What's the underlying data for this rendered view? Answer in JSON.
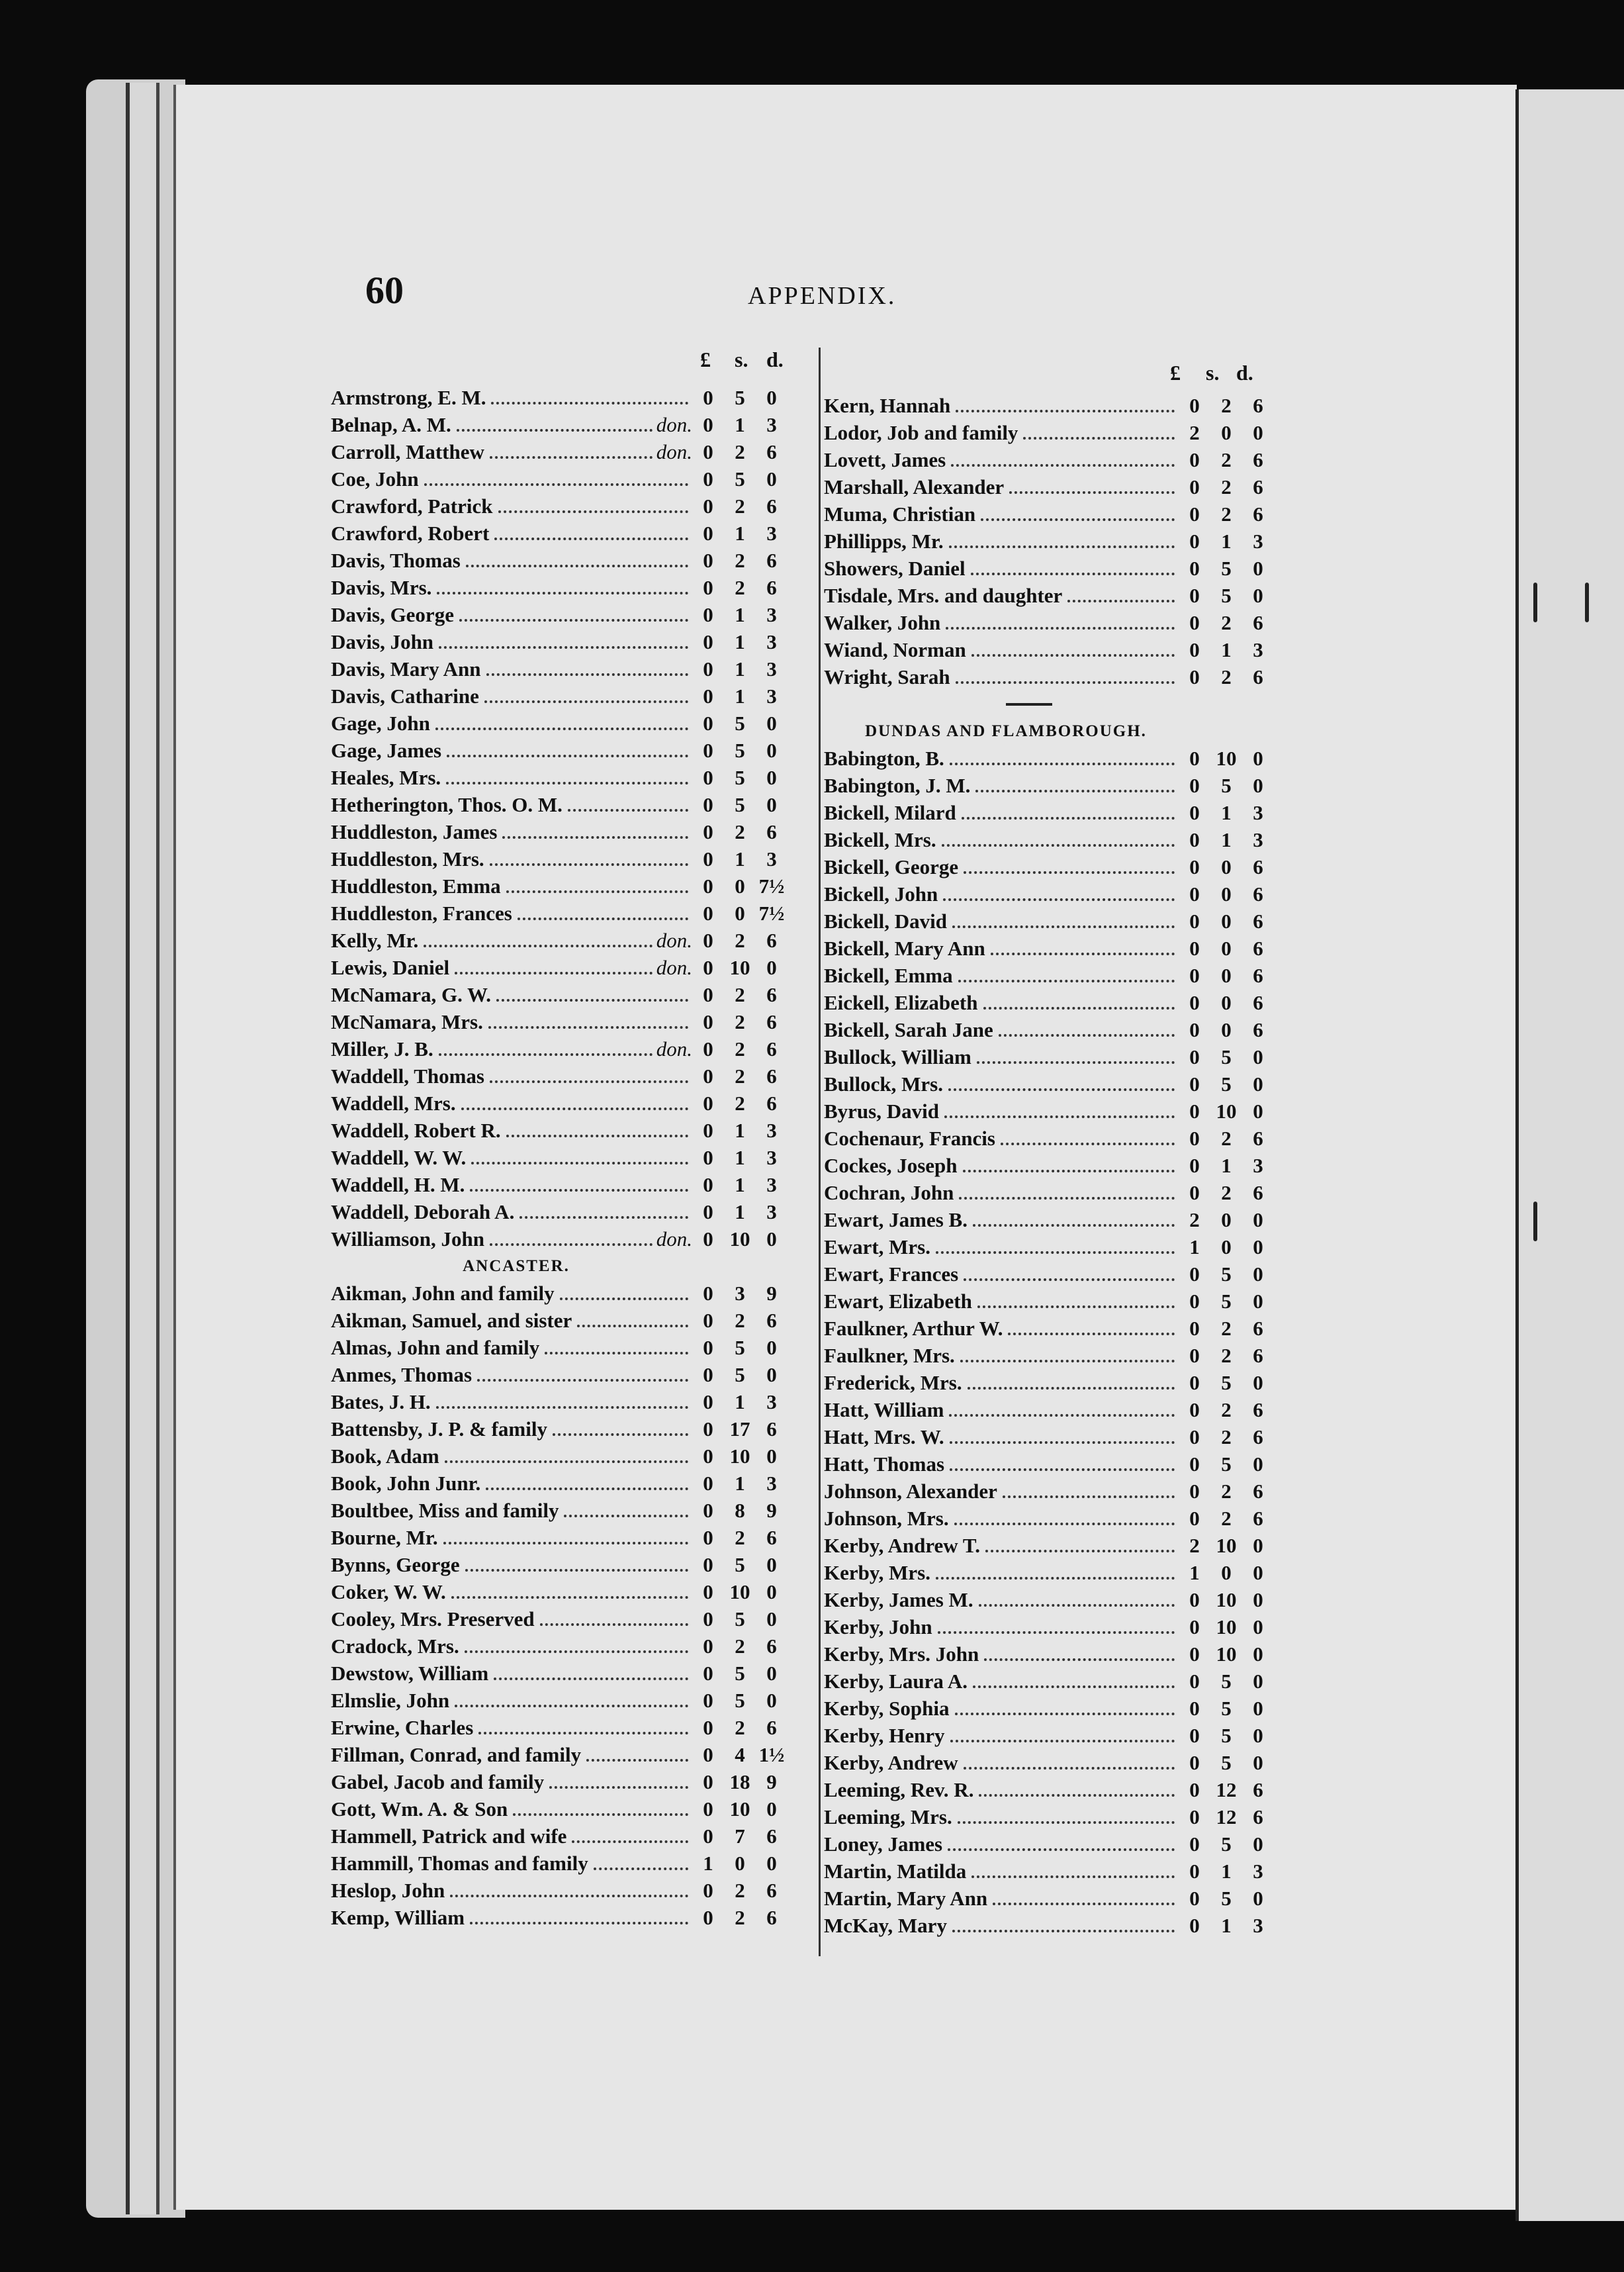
{
  "header": {
    "page_number": "60",
    "running_title": "APPENDIX."
  },
  "column_headings": {
    "pounds": "£",
    "shillings": "s.",
    "pence": "d."
  },
  "left_column": [
    {
      "name": "Armstrong, E. M.",
      "l": "0",
      "s": "5",
      "d": "0"
    },
    {
      "name": "Belnap, A. M.",
      "note": "don.",
      "l": "0",
      "s": "1",
      "d": "3"
    },
    {
      "name": "Carroll, Matthew",
      "note": "don.",
      "l": "0",
      "s": "2",
      "d": "6"
    },
    {
      "name": "Coe, John",
      "l": "0",
      "s": "5",
      "d": "0"
    },
    {
      "name": "Crawford, Patrick",
      "l": "0",
      "s": "2",
      "d": "6"
    },
    {
      "name": "Crawford, Robert",
      "l": "0",
      "s": "1",
      "d": "3"
    },
    {
      "name": "Davis, Thomas",
      "l": "0",
      "s": "2",
      "d": "6"
    },
    {
      "name": "Davis, Mrs.",
      "l": "0",
      "s": "2",
      "d": "6"
    },
    {
      "name": "Davis, George",
      "l": "0",
      "s": "1",
      "d": "3"
    },
    {
      "name": "Davis, John",
      "l": "0",
      "s": "1",
      "d": "3"
    },
    {
      "name": "Davis, Mary Ann",
      "l": "0",
      "s": "1",
      "d": "3"
    },
    {
      "name": "Davis, Catharine",
      "l": "0",
      "s": "1",
      "d": "3"
    },
    {
      "name": "Gage, John",
      "l": "0",
      "s": "5",
      "d": "0"
    },
    {
      "name": "Gage, James",
      "l": "0",
      "s": "5",
      "d": "0"
    },
    {
      "name": "Heales, Mrs.",
      "l": "0",
      "s": "5",
      "d": "0"
    },
    {
      "name": "Hetherington, Thos. O. M.",
      "l": "0",
      "s": "5",
      "d": "0"
    },
    {
      "name": "Huddleston, James",
      "l": "0",
      "s": "2",
      "d": "6"
    },
    {
      "name": "Huddleston, Mrs.",
      "l": "0",
      "s": "1",
      "d": "3"
    },
    {
      "name": "Huddleston, Emma",
      "l": "0",
      "s": "0",
      "d": "7½"
    },
    {
      "name": "Huddleston, Frances",
      "l": "0",
      "s": "0",
      "d": "7½"
    },
    {
      "name": "Kelly, Mr.",
      "note": "don.",
      "l": "0",
      "s": "2",
      "d": "6"
    },
    {
      "name": "Lewis, Daniel",
      "note": "don.",
      "l": "0",
      "s": "10",
      "d": "0"
    },
    {
      "name": "McNamara, G. W.",
      "l": "0",
      "s": "2",
      "d": "6"
    },
    {
      "name": "McNamara, Mrs.",
      "l": "0",
      "s": "2",
      "d": "6"
    },
    {
      "name": "Miller, J. B.",
      "note": "don.",
      "l": "0",
      "s": "2",
      "d": "6"
    },
    {
      "name": "Waddell, Thomas",
      "l": "0",
      "s": "2",
      "d": "6"
    },
    {
      "name": "Waddell, Mrs.",
      "l": "0",
      "s": "2",
      "d": "6"
    },
    {
      "name": "Waddell, Robert R.",
      "l": "0",
      "s": "1",
      "d": "3"
    },
    {
      "name": "Waddell, W. W.",
      "l": "0",
      "s": "1",
      "d": "3"
    },
    {
      "name": "Waddell, H. M.",
      "l": "0",
      "s": "1",
      "d": "3"
    },
    {
      "name": "Waddell, Deborah A.",
      "l": "0",
      "s": "1",
      "d": "3"
    },
    {
      "name": "Williamson, John",
      "note": "don.",
      "l": "0",
      "s": "10",
      "d": "0"
    },
    {
      "heading": "ANCASTER."
    },
    {
      "name": "Aikman, John and family",
      "l": "0",
      "s": "3",
      "d": "9"
    },
    {
      "name": "Aikman, Samuel, and sister",
      "l": "0",
      "s": "2",
      "d": "6"
    },
    {
      "name": "Almas, John and family",
      "l": "0",
      "s": "5",
      "d": "0"
    },
    {
      "name": "Anmes, Thomas",
      "l": "0",
      "s": "5",
      "d": "0"
    },
    {
      "name": "Bates, J. H.",
      "l": "0",
      "s": "1",
      "d": "3"
    },
    {
      "name": "Battensby, J. P. & family",
      "l": "0",
      "s": "17",
      "d": "6"
    },
    {
      "name": "Book, Adam",
      "l": "0",
      "s": "10",
      "d": "0"
    },
    {
      "name": "Book, John Junr.",
      "l": "0",
      "s": "1",
      "d": "3"
    },
    {
      "name": "Boultbee, Miss and family",
      "l": "0",
      "s": "8",
      "d": "9"
    },
    {
      "name": "Bourne, Mr.",
      "l": "0",
      "s": "2",
      "d": "6"
    },
    {
      "name": "Bynns, George",
      "l": "0",
      "s": "5",
      "d": "0"
    },
    {
      "name": "Coker, W. W.",
      "l": "0",
      "s": "10",
      "d": "0"
    },
    {
      "name": "Cooley, Mrs. Preserved",
      "l": "0",
      "s": "5",
      "d": "0"
    },
    {
      "name": "Cradock, Mrs.",
      "l": "0",
      "s": "2",
      "d": "6"
    },
    {
      "name": "Dewstow, William",
      "l": "0",
      "s": "5",
      "d": "0"
    },
    {
      "name": "Elmslie, John",
      "l": "0",
      "s": "5",
      "d": "0"
    },
    {
      "name": "Erwine, Charles",
      "l": "0",
      "s": "2",
      "d": "6"
    },
    {
      "name": "Fillman, Conrad, and family",
      "l": "0",
      "s": "4",
      "d": "1½"
    },
    {
      "name": "Gabel, Jacob and family",
      "l": "0",
      "s": "18",
      "d": "9"
    },
    {
      "name": "Gott, Wm. A. & Son",
      "l": "0",
      "s": "10",
      "d": "0"
    },
    {
      "name": "Hammell, Patrick and wife",
      "l": "0",
      "s": "7",
      "d": "6"
    },
    {
      "name": "Hammill, Thomas and family",
      "l": "1",
      "s": "0",
      "d": "0"
    },
    {
      "name": "Heslop, John",
      "l": "0",
      "s": "2",
      "d": "6"
    },
    {
      "name": "Kemp, William",
      "l": "0",
      "s": "2",
      "d": "6"
    }
  ],
  "right_column": [
    {
      "name": "Kern, Hannah",
      "l": "0",
      "s": "2",
      "d": "6"
    },
    {
      "name": "Lodor, Job and family",
      "l": "2",
      "s": "0",
      "d": "0"
    },
    {
      "name": "Lovett, James",
      "l": "0",
      "s": "2",
      "d": "6"
    },
    {
      "name": "Marshall, Alexander",
      "l": "0",
      "s": "2",
      "d": "6"
    },
    {
      "name": "Muma, Christian",
      "l": "0",
      "s": "2",
      "d": "6"
    },
    {
      "name": "Phillipps, Mr.",
      "l": "0",
      "s": "1",
      "d": "3"
    },
    {
      "name": "Showers, Daniel",
      "l": "0",
      "s": "5",
      "d": "0"
    },
    {
      "name": "Tisdale, Mrs. and daughter",
      "l": "0",
      "s": "5",
      "d": "0"
    },
    {
      "name": "Walker, John",
      "l": "0",
      "s": "2",
      "d": "6"
    },
    {
      "name": "Wiand, Norman",
      "l": "0",
      "s": "1",
      "d": "3"
    },
    {
      "name": "Wright, Sarah",
      "l": "0",
      "s": "2",
      "d": "6"
    },
    {
      "rule": true
    },
    {
      "heading": "DUNDAS AND FLAMBOROUGH."
    },
    {
      "name": "Babington, B.",
      "l": "0",
      "s": "10",
      "d": "0"
    },
    {
      "name": "Babington, J. M.",
      "l": "0",
      "s": "5",
      "d": "0"
    },
    {
      "name": "Bickell, Milard",
      "l": "0",
      "s": "1",
      "d": "3"
    },
    {
      "name": "Bickell, Mrs.",
      "l": "0",
      "s": "1",
      "d": "3"
    },
    {
      "name": "Bickell, George",
      "l": "0",
      "s": "0",
      "d": "6"
    },
    {
      "name": "Bickell, John",
      "l": "0",
      "s": "0",
      "d": "6"
    },
    {
      "name": "Bickell, David",
      "l": "0",
      "s": "0",
      "d": "6"
    },
    {
      "name": "Bickell, Mary Ann",
      "l": "0",
      "s": "0",
      "d": "6"
    },
    {
      "name": "Bickell, Emma",
      "l": "0",
      "s": "0",
      "d": "6"
    },
    {
      "name": "Eickell, Elizabeth",
      "l": "0",
      "s": "0",
      "d": "6"
    },
    {
      "name": "Bickell, Sarah Jane",
      "l": "0",
      "s": "0",
      "d": "6"
    },
    {
      "name": "Bullock, William",
      "l": "0",
      "s": "5",
      "d": "0"
    },
    {
      "name": "Bullock, Mrs.",
      "l": "0",
      "s": "5",
      "d": "0"
    },
    {
      "name": "Byrus, David",
      "l": "0",
      "s": "10",
      "d": "0"
    },
    {
      "name": "Cochenaur, Francis",
      "l": "0",
      "s": "2",
      "d": "6"
    },
    {
      "name": "Cockes, Joseph",
      "l": "0",
      "s": "1",
      "d": "3"
    },
    {
      "name": "Cochran, John",
      "l": "0",
      "s": "2",
      "d": "6"
    },
    {
      "name": "Ewart, James B.",
      "l": "2",
      "s": "0",
      "d": "0"
    },
    {
      "name": "Ewart, Mrs.",
      "l": "1",
      "s": "0",
      "d": "0"
    },
    {
      "name": "Ewart, Frances",
      "l": "0",
      "s": "5",
      "d": "0"
    },
    {
      "name": "Ewart, Elizabeth",
      "l": "0",
      "s": "5",
      "d": "0"
    },
    {
      "name": "Faulkner, Arthur W.",
      "l": "0",
      "s": "2",
      "d": "6"
    },
    {
      "name": "Faulkner, Mrs.",
      "l": "0",
      "s": "2",
      "d": "6"
    },
    {
      "name": "Frederick, Mrs.",
      "l": "0",
      "s": "5",
      "d": "0"
    },
    {
      "name": "Hatt, William",
      "l": "0",
      "s": "2",
      "d": "6"
    },
    {
      "name": "Hatt, Mrs. W.",
      "l": "0",
      "s": "2",
      "d": "6"
    },
    {
      "name": "Hatt, Thomas",
      "l": "0",
      "s": "5",
      "d": "0"
    },
    {
      "name": "Johnson, Alexander",
      "l": "0",
      "s": "2",
      "d": "6"
    },
    {
      "name": "Johnson, Mrs.",
      "l": "0",
      "s": "2",
      "d": "6"
    },
    {
      "name": "Kerby, Andrew T.",
      "l": "2",
      "s": "10",
      "d": "0"
    },
    {
      "name": "Kerby, Mrs.",
      "l": "1",
      "s": "0",
      "d": "0"
    },
    {
      "name": "Kerby, James M.",
      "l": "0",
      "s": "10",
      "d": "0"
    },
    {
      "name": "Kerby, John",
      "l": "0",
      "s": "10",
      "d": "0"
    },
    {
      "name": "Kerby, Mrs. John",
      "l": "0",
      "s": "10",
      "d": "0"
    },
    {
      "name": "Kerby, Laura A.",
      "l": "0",
      "s": "5",
      "d": "0"
    },
    {
      "name": "Kerby, Sophia",
      "l": "0",
      "s": "5",
      "d": "0"
    },
    {
      "name": "Kerby, Henry",
      "l": "0",
      "s": "5",
      "d": "0"
    },
    {
      "name": "Kerby, Andrew",
      "l": "0",
      "s": "5",
      "d": "0"
    },
    {
      "name": "Leeming, Rev. R.",
      "l": "0",
      "s": "12",
      "d": "6"
    },
    {
      "name": "Leeming, Mrs.",
      "l": "0",
      "s": "12",
      "d": "6"
    },
    {
      "name": "Loney, James",
      "l": "0",
      "s": "5",
      "d": "0"
    },
    {
      "name": "Martin, Matilda",
      "l": "0",
      "s": "1",
      "d": "3"
    },
    {
      "name": "Martin, Mary Ann",
      "l": "0",
      "s": "5",
      "d": "0"
    },
    {
      "name": "McKay, Mary",
      "l": "0",
      "s": "1",
      "d": "3"
    }
  ]
}
